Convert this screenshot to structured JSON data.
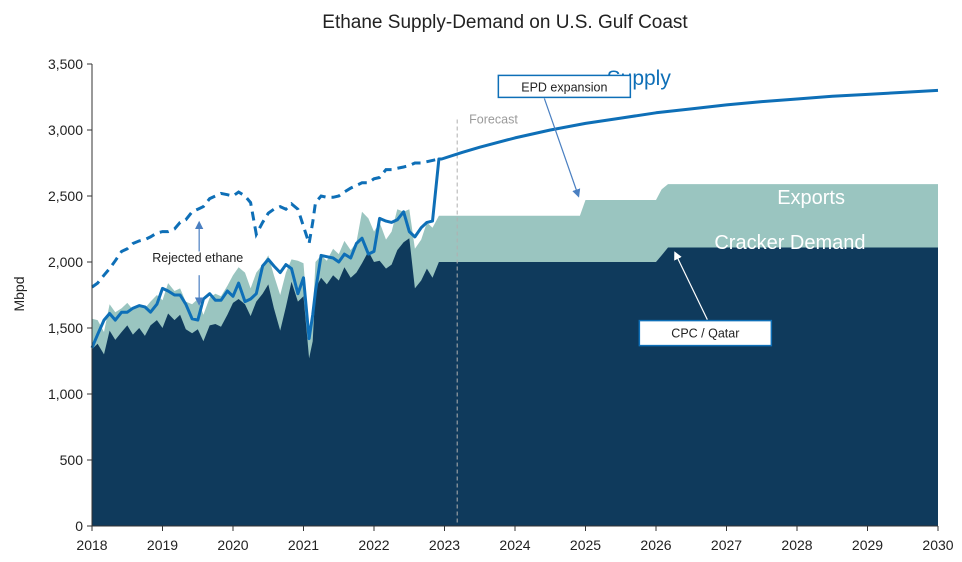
{
  "chart_data": {
    "type": "area",
    "title": "Ethane Supply-Demand on U.S. Gulf Coast",
    "xlabel": "",
    "ylabel": "Mbpd",
    "xlim": [
      2018.0,
      2030.0
    ],
    "ylim": [
      0,
      3500
    ],
    "yticks": [
      0,
      500,
      1000,
      1500,
      2000,
      2500,
      3000,
      3500
    ],
    "ytick_labels": [
      "0",
      "500",
      "1,000",
      "1,500",
      "2,000",
      "2,500",
      "3,000",
      "3,500"
    ],
    "xticks": [
      2018,
      2019,
      2020,
      2021,
      2022,
      2023,
      2024,
      2025,
      2026,
      2027,
      2028,
      2029,
      2030
    ],
    "xtick_labels": [
      "2018",
      "2019",
      "2020",
      "2021",
      "2022",
      "2023",
      "2024",
      "2025",
      "2026",
      "2027",
      "2028",
      "2029",
      "2030"
    ],
    "forecast_start": 2023.18,
    "grid": false,
    "legend": "none",
    "colors": {
      "cracker": "#0f3a5c",
      "exports": "#9ac5c0",
      "supply": "#0e6fb7",
      "callout_border": "#0e6fb7",
      "arrow": "#4a7fc1",
      "forecast_line": "#b0b0b0"
    },
    "series": [
      {
        "name": "Cracker Demand",
        "style": "stacked-area-base",
        "x": [
          2018.0,
          2018.08,
          2018.17,
          2018.25,
          2018.33,
          2018.42,
          2018.5,
          2018.58,
          2018.67,
          2018.75,
          2018.83,
          2018.92,
          2019.0,
          2019.08,
          2019.17,
          2019.25,
          2019.33,
          2019.42,
          2019.5,
          2019.58,
          2019.67,
          2019.75,
          2019.83,
          2019.92,
          2020.0,
          2020.08,
          2020.17,
          2020.25,
          2020.33,
          2020.42,
          2020.5,
          2020.58,
          2020.67,
          2020.75,
          2020.83,
          2020.92,
          2021.0,
          2021.08,
          2021.13,
          2021.17,
          2021.25,
          2021.33,
          2021.42,
          2021.5,
          2021.58,
          2021.67,
          2021.75,
          2021.83,
          2021.92,
          2022.0,
          2022.08,
          2022.17,
          2022.25,
          2022.33,
          2022.42,
          2022.5,
          2022.58,
          2022.67,
          2022.75,
          2022.83,
          2022.92,
          2023.0,
          2023.25,
          2024.0,
          2025.0,
          2026.0,
          2026.08,
          2026.17,
          2027.0,
          2028.0,
          2029.0,
          2030.0
        ],
        "values": [
          1340,
          1380,
          1300,
          1480,
          1410,
          1470,
          1520,
          1450,
          1500,
          1440,
          1520,
          1560,
          1500,
          1610,
          1560,
          1600,
          1490,
          1460,
          1490,
          1400,
          1520,
          1530,
          1510,
          1600,
          1690,
          1720,
          1680,
          1590,
          1700,
          1760,
          1830,
          1650,
          1480,
          1660,
          1850,
          1700,
          1740,
          1270,
          1400,
          1800,
          1880,
          1830,
          1900,
          1860,
          1960,
          1880,
          1920,
          1990,
          2080,
          2000,
          2010,
          1950,
          1980,
          2090,
          2150,
          2180,
          1800,
          1860,
          1950,
          1880,
          2000,
          2000,
          2000,
          2000,
          2000,
          2000,
          2050,
          2110,
          2110,
          2110,
          2110,
          2110
        ]
      },
      {
        "name": "Exports",
        "style": "stacked-area-top",
        "x": [
          2018.0,
          2018.08,
          2018.17,
          2018.25,
          2018.33,
          2018.42,
          2018.5,
          2018.58,
          2018.67,
          2018.75,
          2018.83,
          2018.92,
          2019.0,
          2019.08,
          2019.17,
          2019.25,
          2019.33,
          2019.42,
          2019.5,
          2019.58,
          2019.67,
          2019.75,
          2019.83,
          2019.92,
          2020.0,
          2020.08,
          2020.17,
          2020.25,
          2020.33,
          2020.42,
          2020.5,
          2020.58,
          2020.67,
          2020.75,
          2020.83,
          2020.92,
          2021.0,
          2021.08,
          2021.13,
          2021.17,
          2021.25,
          2021.33,
          2021.42,
          2021.5,
          2021.58,
          2021.67,
          2021.75,
          2021.83,
          2021.92,
          2022.0,
          2022.08,
          2022.17,
          2022.25,
          2022.33,
          2022.42,
          2022.5,
          2022.58,
          2022.67,
          2022.75,
          2022.83,
          2022.92,
          2023.0,
          2023.25,
          2024.0,
          2024.92,
          2025.0,
          2026.0,
          2026.08,
          2026.17,
          2027.0,
          2028.0,
          2029.0,
          2030.0
        ],
        "values": [
          1570,
          1560,
          1470,
          1680,
          1620,
          1650,
          1690,
          1640,
          1680,
          1650,
          1700,
          1750,
          1710,
          1840,
          1780,
          1800,
          1700,
          1680,
          1720,
          1600,
          1730,
          1760,
          1740,
          1820,
          1900,
          1960,
          1920,
          1800,
          1920,
          1980,
          2050,
          1900,
          1750,
          1920,
          2020,
          2010,
          1990,
          1440,
          1600,
          2000,
          2050,
          2010,
          2100,
          2060,
          2160,
          2090,
          2150,
          2380,
          2330,
          2230,
          2300,
          2170,
          2230,
          2400,
          2380,
          2400,
          2100,
          2170,
          2300,
          2260,
          2350,
          2350,
          2350,
          2350,
          2350,
          2470,
          2470,
          2550,
          2590,
          2590,
          2590,
          2590,
          2590
        ]
      },
      {
        "name": "Supply",
        "style": "line",
        "x": [
          2018.0,
          2018.08,
          2018.17,
          2018.25,
          2018.33,
          2018.42,
          2018.5,
          2018.58,
          2018.67,
          2018.75,
          2018.83,
          2018.92,
          2019.0,
          2019.08,
          2019.17,
          2019.25,
          2019.33,
          2019.42,
          2019.5,
          2019.58,
          2019.67,
          2019.75,
          2019.83,
          2019.92,
          2020.0,
          2020.08,
          2020.17,
          2020.25,
          2020.33,
          2020.42,
          2020.5,
          2020.58,
          2020.67,
          2020.75,
          2020.83,
          2020.92,
          2021.0,
          2021.08,
          2021.13,
          2021.17,
          2021.25,
          2021.33,
          2021.42,
          2021.5,
          2021.58,
          2021.67,
          2021.75,
          2021.83,
          2021.92,
          2022.0,
          2022.08,
          2022.17,
          2022.25,
          2022.33,
          2022.42,
          2022.5,
          2022.58,
          2022.67,
          2022.75,
          2022.83,
          2022.92,
          2022.96,
          2023.25,
          2023.5,
          2024.0,
          2024.5,
          2025.0,
          2025.5,
          2026.0,
          2026.5,
          2027.0,
          2027.5,
          2028.0,
          2028.5,
          2029.0,
          2029.5,
          2030.0
        ],
        "values": [
          1350,
          1450,
          1560,
          1610,
          1560,
          1620,
          1620,
          1650,
          1670,
          1660,
          1620,
          1680,
          1800,
          1780,
          1750,
          1750,
          1680,
          1570,
          1560,
          1720,
          1760,
          1710,
          1710,
          1780,
          1740,
          1840,
          1700,
          1720,
          1760,
          1970,
          2020,
          1970,
          1920,
          1980,
          1950,
          1760,
          1880,
          1420,
          1600,
          1780,
          2050,
          2040,
          2030,
          2000,
          2060,
          2030,
          2140,
          2180,
          2060,
          2080,
          2330,
          2310,
          2300,
          2320,
          2380,
          2230,
          2190,
          2260,
          2300,
          2310,
          2780,
          2780,
          2830,
          2870,
          2940,
          3000,
          3050,
          3090,
          3130,
          3160,
          3190,
          3215,
          3235,
          3255,
          3270,
          3285,
          3300
        ]
      },
      {
        "name": "Supply (incl. rejected ethane)",
        "style": "dashed-line",
        "x": [
          2018.0,
          2018.08,
          2018.17,
          2018.25,
          2018.33,
          2018.42,
          2018.5,
          2018.58,
          2018.67,
          2018.75,
          2018.83,
          2018.92,
          2019.0,
          2019.08,
          2019.17,
          2019.25,
          2019.33,
          2019.42,
          2019.5,
          2019.58,
          2019.67,
          2019.75,
          2019.83,
          2019.92,
          2020.0,
          2020.08,
          2020.17,
          2020.25,
          2020.33,
          2020.42,
          2020.5,
          2020.58,
          2020.67,
          2020.75,
          2020.83,
          2020.92,
          2021.0,
          2021.08,
          2021.13,
          2021.17,
          2021.25,
          2021.33,
          2021.42,
          2021.5,
          2021.58,
          2021.67,
          2021.75,
          2021.83,
          2021.92,
          2022.0,
          2022.08,
          2022.17,
          2022.25,
          2022.33,
          2022.42,
          2022.5,
          2022.58,
          2022.67,
          2022.75,
          2022.83,
          2022.92
        ],
        "values": [
          1810,
          1840,
          1900,
          1950,
          2010,
          2080,
          2100,
          2140,
          2160,
          2170,
          2190,
          2220,
          2230,
          2230,
          2250,
          2300,
          2320,
          2380,
          2400,
          2420,
          2480,
          2500,
          2520,
          2510,
          2500,
          2530,
          2500,
          2450,
          2210,
          2300,
          2370,
          2400,
          2420,
          2400,
          2440,
          2400,
          2270,
          2140,
          2300,
          2450,
          2500,
          2490,
          2490,
          2500,
          2530,
          2560,
          2580,
          2600,
          2600,
          2630,
          2640,
          2700,
          2700,
          2710,
          2720,
          2730,
          2750,
          2750,
          2760,
          2770,
          2780
        ]
      }
    ],
    "annotations": [
      {
        "text": "Supply",
        "x": 2025.3,
        "y": 3340
      },
      {
        "text": "Exports",
        "x": 2028.2,
        "y": 2440
      },
      {
        "text": "Cracker Demand",
        "x": 2027.9,
        "y": 2100
      },
      {
        "text": "Rejected ethane",
        "x": 2019.5,
        "y": 2000
      },
      {
        "text": "Forecast",
        "x": 2023.35,
        "y": 3050
      },
      {
        "text": "EPD expansion",
        "x": 2024.7,
        "y": 3300
      },
      {
        "text": "CPC / Qatar",
        "x": 2026.7,
        "y": 1450
      }
    ]
  }
}
